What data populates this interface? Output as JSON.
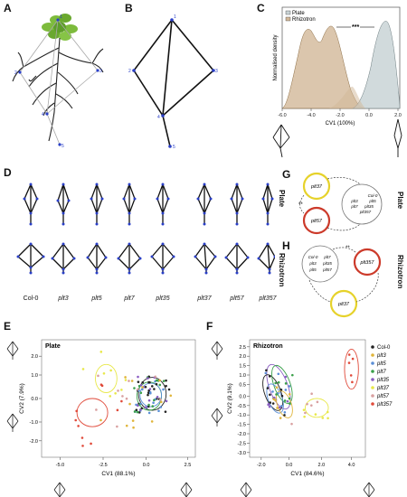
{
  "panels": {
    "A": "A",
    "B": "B",
    "C": "C",
    "D": "D",
    "E": "E",
    "F": "F",
    "G": "G",
    "H": "H"
  },
  "node_labels": [
    "1",
    "2",
    "3",
    "4",
    "5"
  ],
  "panel_c": {
    "legend": [
      "Plate",
      "Rhizotron"
    ],
    "ylabel": "Normalised density",
    "xlabel": "CV1 (100%)",
    "xticks": [
      "-6.0",
      "-4.0",
      "-2.0",
      "0.0",
      "2.0"
    ],
    "significance": "***"
  },
  "panel_d": {
    "row_labels": [
      "Plate",
      "Rhizotron"
    ],
    "genotypes": [
      "Col-0",
      "plt3",
      "plt5",
      "plt7",
      "plt35",
      "plt37",
      "plt57",
      "plt357"
    ]
  },
  "panel_g": {
    "top_circle": "plt37",
    "bottom_circle": "plt57",
    "cluster": [
      "Col-0",
      "plt3",
      "plt5",
      "plt7",
      "plt35",
      "plt357"
    ],
    "signif": "**",
    "side_label": "Plate"
  },
  "panel_h": {
    "cluster": [
      "Col-0",
      "plt7",
      "plt3",
      "plt35",
      "plt5",
      "plt57"
    ],
    "right_circle": "plt357",
    "bottom_circle": "plt37",
    "signif": "**",
    "side_label": "Rhizotron"
  },
  "panel_e": {
    "title": "Plate",
    "xlabel": "CV1 (88.1%)",
    "ylabel": "CV2 (7.9%)",
    "xticks": [
      "-5.0",
      "-2.5",
      "0.0",
      "2.5"
    ],
    "yticks": [
      "2.0",
      "1.0",
      "0.0",
      "-1.0",
      "-2.0"
    ]
  },
  "panel_f": {
    "title": "Rhizotron",
    "xlabel": "CV1 (84.6%)",
    "ylabel": "CV2 (9.1%)",
    "xticks": [
      "-2.0",
      "0.0",
      "2.0",
      "4.0"
    ],
    "yticks": [
      "2.5",
      "2.0",
      "1.5",
      "1.0",
      "0.5",
      "0.0",
      "-0.5",
      "-1.0",
      "-1.5",
      "-2.0",
      "-2.5",
      "-3.0"
    ]
  },
  "legend": [
    {
      "label": "Col-0",
      "color": "#222222"
    },
    {
      "label": "plt3",
      "color": "#e0b53a"
    },
    {
      "label": "plt5",
      "color": "#5b8fd6"
    },
    {
      "label": "plt7",
      "color": "#3aa04a"
    },
    {
      "label": "plt35",
      "color": "#8a5cc2"
    },
    {
      "label": "plt37",
      "color": "#e8e84a"
    },
    {
      "label": "plt57",
      "color": "#d9a0a0"
    },
    {
      "label": "plt357",
      "color": "#e04a3a"
    }
  ],
  "colors": {
    "plate": "#c9d3d6",
    "rhizotron": "#d2b898",
    "node": "#2a3fc7",
    "leaf": "#7dbb3c",
    "yellow_circle": "#e6d22a",
    "red_circle": "#cc3a2a"
  }
}
